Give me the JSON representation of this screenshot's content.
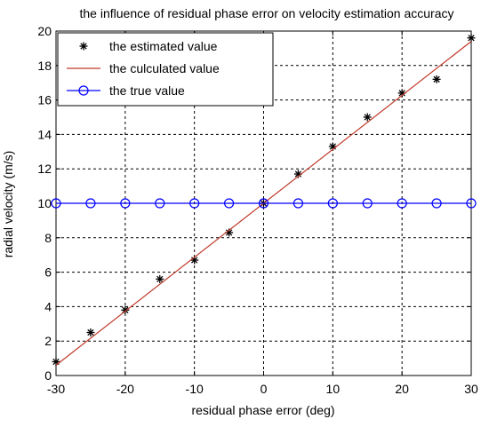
{
  "chart_data": {
    "type": "line",
    "title": "the influence of residual phase error on velocity estimation accuracy",
    "xlabel": "residual phase error (deg)",
    "ylabel": "radial velocity (m/s)",
    "xlim": [
      -30,
      30
    ],
    "ylim": [
      0,
      20
    ],
    "xticks": [
      -30,
      -20,
      -10,
      0,
      10,
      20,
      30
    ],
    "yticks": [
      0,
      2,
      4,
      6,
      8,
      10,
      12,
      14,
      16,
      18,
      20
    ],
    "grid": true,
    "legend_position": "top-left",
    "series": [
      {
        "name": "the estimated value",
        "style": "asterisk-markers",
        "color": "#000000",
        "x": [
          -30,
          -25,
          -20,
          -15,
          -10,
          -5,
          0,
          5,
          10,
          15,
          20,
          25,
          30
        ],
        "y": [
          0.8,
          2.5,
          3.8,
          5.6,
          6.7,
          8.3,
          10.0,
          11.7,
          13.3,
          15.0,
          16.4,
          17.2,
          19.6
        ]
      },
      {
        "name": "the culculated value",
        "style": "line",
        "color": "#c0392b",
        "x": [
          -30,
          30
        ],
        "y": [
          0.6,
          19.4
        ]
      },
      {
        "name": "the true value",
        "style": "line-circle-markers",
        "color": "#0000ff",
        "x": [
          -30,
          -25,
          -20,
          -15,
          -10,
          -5,
          0,
          5,
          10,
          15,
          20,
          25,
          30
        ],
        "y": [
          10,
          10,
          10,
          10,
          10,
          10,
          10,
          10,
          10,
          10,
          10,
          10,
          10
        ]
      }
    ]
  }
}
